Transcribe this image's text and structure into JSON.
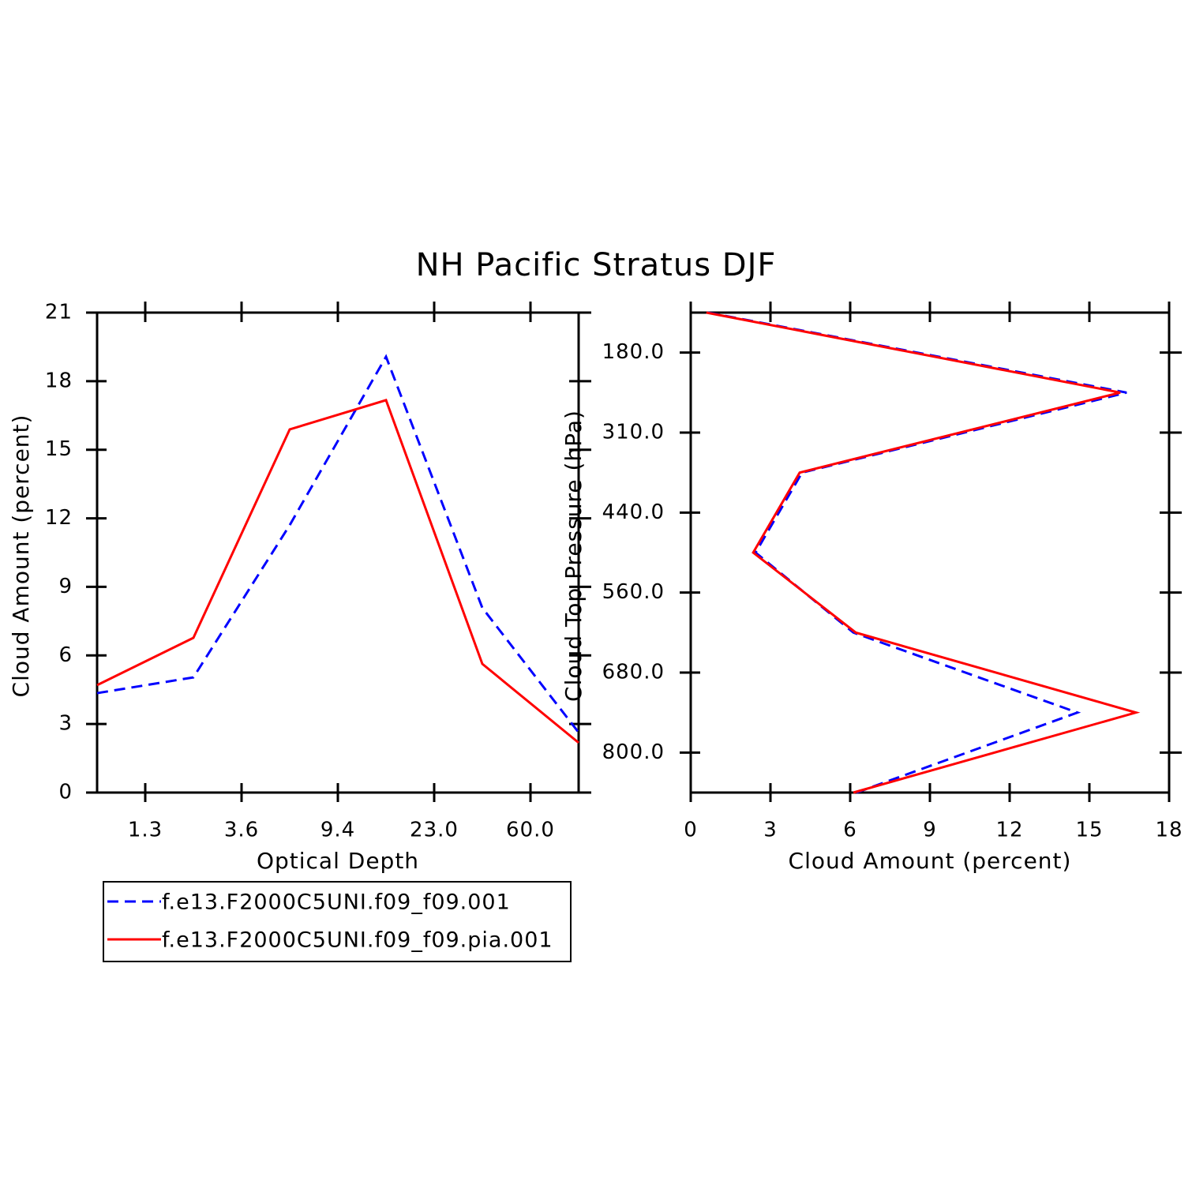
{
  "title": "NH Pacific Stratus DJF",
  "chart_data": [
    {
      "type": "line",
      "orientation": "vertical",
      "x": [
        0,
        1,
        2,
        3,
        4,
        5
      ],
      "xlim": [
        0,
        5
      ],
      "xticks": [
        {
          "value": 0.5,
          "label": "1.3"
        },
        {
          "value": 1.5,
          "label": "3.6"
        },
        {
          "value": 2.5,
          "label": "9.4"
        },
        {
          "value": 3.5,
          "label": "23.0"
        },
        {
          "value": 4.5,
          "label": "60.0"
        }
      ],
      "ylim": [
        0,
        21
      ],
      "yticks": [
        0,
        3,
        6,
        9,
        12,
        15,
        18,
        21
      ],
      "xlabel": "Optical Depth",
      "ylabel": "Cloud Amount (percent)",
      "series": [
        {
          "name": "f.e13.F2000C5UNI.f09_f09.001",
          "color": "#0000ff",
          "dashed": true,
          "values": [
            4.35,
            5.04,
            11.7,
            19.07,
            8.08,
            2.63
          ]
        },
        {
          "name": "f.e13.F2000C5UNI.f09_f09.pia.001",
          "color": "#ff0000",
          "dashed": false,
          "values": [
            4.7,
            6.77,
            15.89,
            17.17,
            5.63,
            2.18
          ]
        }
      ]
    },
    {
      "type": "line",
      "orientation": "horizontal",
      "y": [
        0,
        1,
        2,
        3,
        4,
        5,
        6
      ],
      "ylim": [
        6,
        0
      ],
      "yticks": [
        {
          "value": 0.5,
          "label": "180.0"
        },
        {
          "value": 1.5,
          "label": "310.0"
        },
        {
          "value": 2.5,
          "label": "440.0"
        },
        {
          "value": 3.5,
          "label": "560.0"
        },
        {
          "value": 4.5,
          "label": "680.0"
        },
        {
          "value": 5.5,
          "label": "800.0"
        }
      ],
      "xlim": [
        0,
        18
      ],
      "xticks": [
        0,
        3,
        6,
        9,
        12,
        15,
        18
      ],
      "xlabel": "Cloud Amount (percent)",
      "ylabel": "Cloud Top Pressure (hPa)",
      "series": [
        {
          "color": "#0000ff",
          "dashed": true,
          "values": [
            0.65,
            16.4,
            4.19,
            2.44,
            6.12,
            14.55,
            6.24
          ]
        },
        {
          "color": "#ff0000",
          "dashed": false,
          "values": [
            0.59,
            16.16,
            4.1,
            2.35,
            6.21,
            16.75,
            6.12
          ]
        }
      ]
    }
  ]
}
